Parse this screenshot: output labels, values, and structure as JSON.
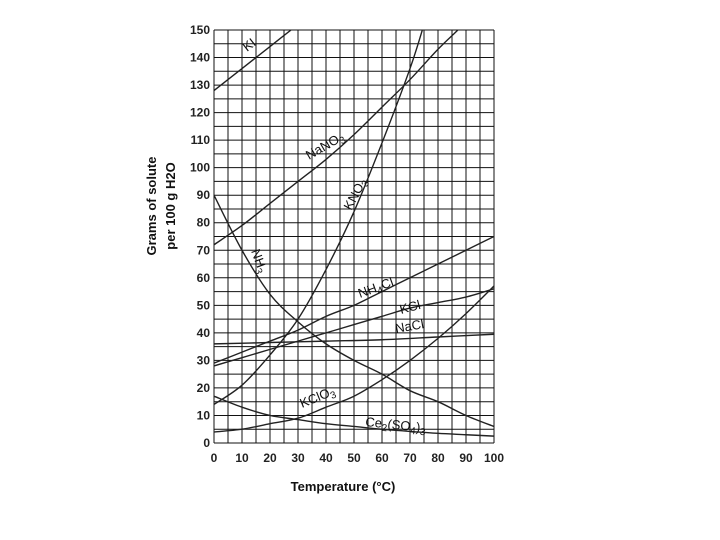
{
  "chart_data": {
    "type": "line",
    "xlabel": "Temperature (°C)",
    "ylabel_line1": "Grams of solute",
    "ylabel_line2": "per 100 g H2O",
    "xlim": [
      0,
      100
    ],
    "ylim": [
      0,
      150
    ],
    "grid": true,
    "x_ticks": [
      "0",
      "10",
      "20",
      "30",
      "40",
      "50",
      "60",
      "70",
      "80",
      "90",
      "100"
    ],
    "y_ticks": [
      "0",
      "10",
      "20",
      "30",
      "40",
      "50",
      "60",
      "70",
      "80",
      "90",
      "100",
      "110",
      "120",
      "130",
      "140",
      "150"
    ],
    "series": [
      {
        "name": "KI",
        "x": [
          0,
          10,
          20,
          30
        ],
        "y": [
          128,
          136,
          144,
          152
        ]
      },
      {
        "name": "NaNO3",
        "x": [
          0,
          10,
          20,
          30,
          40,
          50,
          60,
          70,
          80,
          90,
          100
        ],
        "y": [
          72,
          79,
          87,
          95,
          103,
          112,
          122,
          132,
          143,
          153,
          165
        ]
      },
      {
        "name": "KNO3",
        "x": [
          0,
          10,
          20,
          30,
          40,
          50,
          60,
          70,
          75
        ],
        "y": [
          14,
          21,
          32,
          45,
          63,
          84,
          109,
          136,
          152
        ]
      },
      {
        "name": "NH3",
        "x": [
          0,
          10,
          20,
          30,
          40,
          50,
          60,
          70,
          80,
          90,
          100
        ],
        "y": [
          90,
          70,
          54,
          44,
          36,
          30,
          25,
          19,
          15,
          10,
          6
        ]
      },
      {
        "name": "NH4Cl",
        "x": [
          0,
          10,
          20,
          30,
          40,
          50,
          60,
          70,
          80,
          90,
          100
        ],
        "y": [
          29,
          33,
          37,
          41,
          46,
          50,
          55,
          60,
          65,
          70,
          75
        ]
      },
      {
        "name": "KCl",
        "x": [
          0,
          10,
          20,
          30,
          40,
          50,
          60,
          70,
          80,
          90,
          100
        ],
        "y": [
          28,
          31,
          34,
          37,
          40,
          43,
          46,
          49,
          51,
          53,
          56
        ]
      },
      {
        "name": "NaCl",
        "x": [
          0,
          20,
          40,
          60,
          80,
          100
        ],
        "y": [
          36,
          36.5,
          37,
          37.5,
          38.5,
          39.5
        ]
      },
      {
        "name": "KClO3",
        "x": [
          0,
          10,
          20,
          30,
          40,
          50,
          60,
          70,
          80,
          90,
          100
        ],
        "y": [
          4,
          5,
          7,
          9,
          13,
          17,
          23,
          30,
          38,
          47,
          57
        ]
      },
      {
        "name": "Ce2(SO4)3",
        "x": [
          0,
          10,
          20,
          30,
          40,
          50,
          60,
          70,
          80,
          90,
          100
        ],
        "y": [
          17,
          13,
          10,
          8.5,
          7,
          6,
          5,
          4.2,
          3.5,
          3,
          2.5
        ]
      }
    ]
  }
}
